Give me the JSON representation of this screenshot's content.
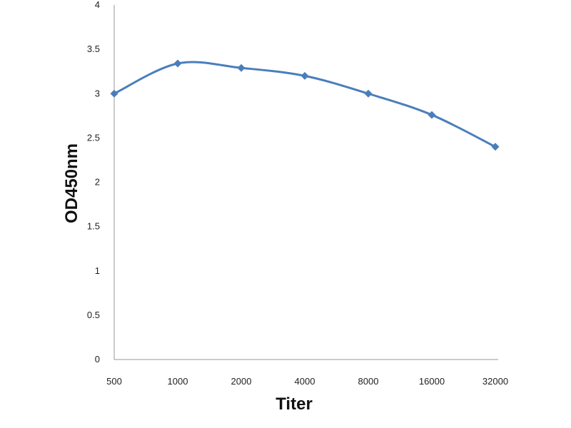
{
  "chart_data": {
    "type": "line",
    "title": "",
    "xlabel": "Titer",
    "ylabel": "OD450nm",
    "categories": [
      "500",
      "1000",
      "2000",
      "4000",
      "8000",
      "16000",
      "32000"
    ],
    "series": [
      {
        "values": [
          3.0,
          3.34,
          3.29,
          3.2,
          3.0,
          2.76,
          2.4
        ]
      }
    ],
    "yticks": [
      "0",
      "0.5",
      "1",
      "1.5",
      "2",
      "2.5",
      "3",
      "3.5",
      "4"
    ],
    "ylim": [
      0,
      4
    ],
    "grid": false,
    "legend": "none",
    "line_color": "#4a7ebb",
    "marker": "diamond",
    "smooth": true
  }
}
